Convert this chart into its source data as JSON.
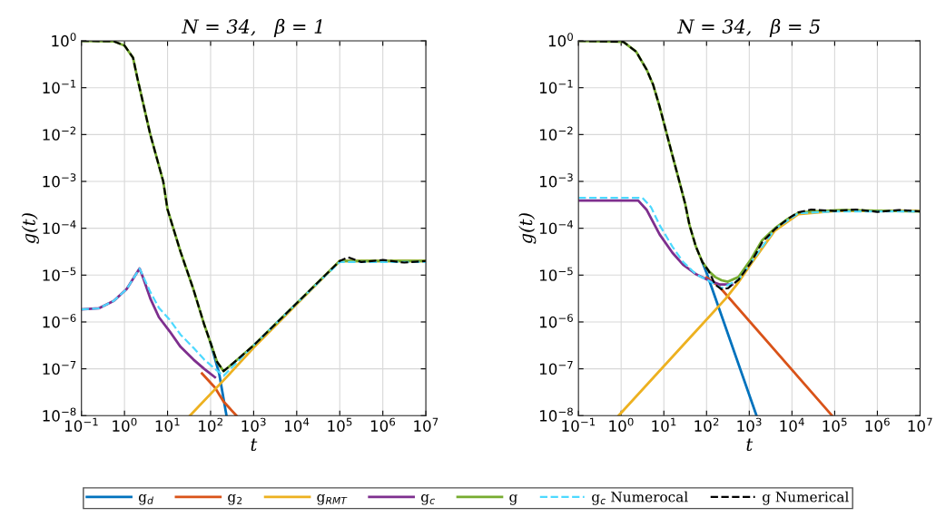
{
  "chart_data": [
    {
      "type": "line",
      "title": "N = 34,   β = 1",
      "xlabel": "t",
      "ylabel": "g(t)",
      "log": "xy",
      "grid": true,
      "legend": "bottom",
      "xlim": [
        0.1,
        10000000
      ],
      "ylim": [
        1e-08,
        1
      ],
      "xticks": [
        {
          "value": 0.1,
          "label": "10$^{−1}$"
        },
        {
          "value": 1,
          "label": "10$^{0}$"
        },
        {
          "value": 10,
          "label": "10$^{1}$"
        },
        {
          "value": 100,
          "label": "10$^{2}$"
        },
        {
          "value": 1000,
          "label": "10$^{3}$"
        },
        {
          "value": 10000,
          "label": "10$^{4}$"
        },
        {
          "value": 100000,
          "label": "10$^{5}$"
        },
        {
          "value": 1000000,
          "label": "10$^{6}$"
        },
        {
          "value": 10000000,
          "label": "10$^{7}$"
        }
      ],
      "yticks": [
        {
          "value": 1e-08,
          "label": "10$^{−8}$"
        },
        {
          "value": 1e-07,
          "label": "10$^{−7}$"
        },
        {
          "value": 1e-06,
          "label": "10$^{−6}$"
        },
        {
          "value": 1e-05,
          "label": "10$^{−5}$"
        },
        {
          "value": 0.0001,
          "label": "10$^{−4}$"
        },
        {
          "value": 0.001,
          "label": "10$^{−3}$"
        },
        {
          "value": 0.01,
          "label": "10$^{−2}$"
        },
        {
          "value": 0.1,
          "label": "10$^{−1}$"
        },
        {
          "value": 1,
          "label": "10$^{0}$"
        }
      ],
      "series": [
        {
          "name": "g$_{d}$",
          "color": "#0072bd",
          "line_style": "solid",
          "x": [
            100,
            158,
            234
          ],
          "values": [
            3.55e-07,
            7.94e-08,
            1e-08
          ]
        },
        {
          "name": "g$_{2}$",
          "color": "#d95319",
          "line_style": "solid",
          "x": [
            63.1,
            126,
            200,
            398
          ],
          "values": [
            7.94e-08,
            3.98e-08,
            2e-08,
            1e-08
          ]
        },
        {
          "name": "g$_{RMT}$",
          "color": "#edb120",
          "line_style": "solid",
          "x": [
            33.1,
            251,
            1000,
            10000,
            100000,
            10000000
          ],
          "values": [
            1e-08,
            7.08e-08,
            2.82e-07,
            2.4e-06,
            2e-05,
            2e-05
          ]
        },
        {
          "name": "g$_{c}$",
          "color": "#7e2f8e",
          "line_style": "solid",
          "x": [
            0.1,
            0.251,
            0.562,
            1.12,
            2.24,
            2.82,
            3.98,
            6.31,
            11.2,
            20,
            39.8,
            70.8,
            126
          ],
          "values": [
            1.86e-06,
            1.95e-06,
            2.82e-06,
            5.01e-06,
            1.38e-05,
            7.94e-06,
            3.16e-06,
            1.26e-06,
            6.31e-07,
            2.95e-07,
            1.58e-07,
            1e-07,
            6.61e-08
          ]
        },
        {
          "name": "g",
          "color": "#77ac30",
          "line_style": "solid",
          "x": [
            0.1,
            0.562,
            1,
            1.58,
            2.0,
            2.82,
            3.98,
            5.62,
            7.94,
            10,
            20,
            39.8,
            70.8,
            100,
            141,
            200,
            316,
            1000,
            3160,
            10000,
            31600,
            100000,
            1000000,
            10000000
          ],
          "values": [
            1,
            0.977,
            0.794,
            0.437,
            0.158,
            0.0398,
            0.01,
            0.00316,
            0.001,
            0.000251,
            3.16e-05,
            5.01e-06,
            8.91e-07,
            3.55e-07,
            1.41e-07,
            8.91e-08,
            1.26e-07,
            3.16e-07,
            8.91e-07,
            2.51e-06,
            7.08e-06,
            2e-05,
            2e-05,
            2e-05
          ]
        },
        {
          "name": "g$_{c}$ Numerocal",
          "color": "#4dd9ff",
          "line_style": "dashed",
          "x": [
            0.1,
            0.251,
            0.562,
            1.12,
            2.24,
            3.98,
            6.31,
            11.2,
            20,
            39.8,
            70.8,
            126,
            200,
            1000,
            10000,
            100000,
            10000000
          ],
          "values": [
            1.86e-06,
            1.95e-06,
            2.82e-06,
            5.01e-06,
            1.38e-05,
            4.37e-06,
            2e-06,
            1.12e-06,
            5.37e-07,
            2.82e-07,
            1.58e-07,
            1e-07,
            7.08e-08,
            3.16e-07,
            2.51e-06,
            1.91e-05,
            1.91e-05
          ]
        },
        {
          "name": "g Numerical",
          "color": "#000000",
          "line_style": "dashed",
          "x": [
            0.1,
            0.562,
            1,
            1.58,
            2.0,
            2.82,
            3.98,
            5.62,
            7.94,
            10,
            20,
            39.8,
            70.8,
            100,
            141,
            200,
            316,
            1000,
            3160,
            10000,
            31600,
            100000,
            158000,
            316000,
            1000000,
            3160000,
            10000000
          ],
          "values": [
            1,
            0.977,
            0.794,
            0.437,
            0.158,
            0.0398,
            0.01,
            0.00316,
            0.001,
            0.000251,
            3.16e-05,
            5.01e-06,
            8.91e-07,
            3.55e-07,
            1.41e-07,
            8.91e-08,
            1.26e-07,
            3.16e-07,
            8.91e-07,
            2.51e-06,
            7.08e-06,
            2e-05,
            2.4e-05,
            1.9e-05,
            2.1e-05,
            1.85e-05,
            2e-05
          ]
        }
      ]
    },
    {
      "type": "line",
      "title": "N = 34,   β = 5",
      "xlabel": "t",
      "ylabel": "g(t)",
      "log": "xy",
      "grid": true,
      "legend": "bottom",
      "xlim": [
        0.1,
        10000000
      ],
      "ylim": [
        1e-08,
        1
      ],
      "xticks": [
        {
          "value": 0.1,
          "label": "10$^{−1}$"
        },
        {
          "value": 1,
          "label": "10$^{0}$"
        },
        {
          "value": 10,
          "label": "10$^{1}$"
        },
        {
          "value": 100,
          "label": "10$^{2}$"
        },
        {
          "value": 1000,
          "label": "10$^{3}$"
        },
        {
          "value": 10000,
          "label": "10$^{4}$"
        },
        {
          "value": 100000,
          "label": "10$^{5}$"
        },
        {
          "value": 1000000,
          "label": "10$^{6}$"
        },
        {
          "value": 10000000,
          "label": "10$^{7}$"
        }
      ],
      "yticks": [
        {
          "value": 1e-08,
          "label": "10$^{−8}$"
        },
        {
          "value": 1e-07,
          "label": "10$^{−7}$"
        },
        {
          "value": 1e-06,
          "label": "10$^{−6}$"
        },
        {
          "value": 1e-05,
          "label": "10$^{−5}$"
        },
        {
          "value": 0.0001,
          "label": "10$^{−4}$"
        },
        {
          "value": 0.001,
          "label": "10$^{−3}$"
        },
        {
          "value": 0.01,
          "label": "10$^{−2}$"
        },
        {
          "value": 0.1,
          "label": "10$^{−1}$"
        },
        {
          "value": 1,
          "label": "10$^{0}$"
        }
      ],
      "series": [
        {
          "name": "g$_{d}$",
          "color": "#0072bd",
          "line_style": "solid",
          "x": [
            79.4,
            100,
            1480
          ],
          "values": [
            1.91e-05,
            1.12e-05,
            1e-08
          ]
        },
        {
          "name": "g$_{2}$",
          "color": "#d95319",
          "line_style": "solid",
          "x": [
            100,
            200,
            87100
          ],
          "values": [
            8.91e-06,
            5.62e-06,
            1e-08
          ]
        },
        {
          "name": "g$_{RMT}$",
          "color": "#edb120",
          "line_style": "solid",
          "x": [
            0.871,
            282,
            562,
            1120,
            3980,
            14100,
            100000,
            10000000
          ],
          "values": [
            1e-08,
            3.16e-06,
            7.08e-06,
            1.78e-05,
            8.91e-05,
            0.0002,
            0.000234,
            0.000234
          ]
        },
        {
          "name": "g$_{c}$",
          "color": "#7e2f8e",
          "line_style": "solid",
          "x": [
            0.1,
            2.51,
            3.98,
            7.94,
            15.8,
            28.2,
            56.2,
            112,
            200,
            398
          ],
          "values": [
            0.000389,
            0.000389,
            0.000245,
            7.41e-05,
            3.02e-05,
            1.66e-05,
            1.05e-05,
            7.76e-06,
            6.31e-06,
            6.31e-06
          ]
        },
        {
          "name": "g",
          "color": "#77ac30",
          "line_style": "solid",
          "x": [
            0.1,
            1.12,
            2.24,
            3.98,
            5.62,
            7.94,
            11.2,
            15.8,
            22.4,
            31.6,
            39.8,
            56.2,
            79.4,
            112,
            158,
            224,
            316,
            562,
            1120,
            2000,
            3980,
            7940,
            14100,
            28200,
            141000,
            10000000
          ],
          "values": [
            1,
            0.955,
            0.589,
            0.24,
            0.115,
            0.0398,
            0.012,
            0.00363,
            0.0011,
            0.000331,
            0.000117,
            4.07e-05,
            1.91e-05,
            1.23e-05,
            9.12e-06,
            7.76e-06,
            7.24e-06,
            9.12e-06,
            2.24e-05,
            5.5e-05,
            0.0001,
            0.000158,
            0.000214,
            0.000229,
            0.000245,
            0.000229
          ]
        },
        {
          "name": "g$_{c}$ Numerocal",
          "color": "#4dd9ff",
          "line_style": "dashed",
          "x": [
            0.1,
            3.16,
            5.01,
            7.94,
            15.8,
            28.2,
            56.2,
            112,
            224,
            562,
            1120,
            3980,
            14100,
            100000,
            10000000
          ],
          "values": [
            0.000447,
            0.000447,
            0.000282,
            0.000117,
            4.07e-05,
            1.91e-05,
            1.05e-05,
            7.59e-06,
            5.25e-06,
            7.94e-06,
            1.91e-05,
            9.55e-05,
            0.000209,
            0.000229,
            0.000229
          ]
        },
        {
          "name": "g Numerical",
          "color": "#000000",
          "line_style": "dashed",
          "x": [
            0.1,
            1.12,
            2.24,
            3.98,
            5.62,
            7.94,
            11.2,
            15.8,
            22.4,
            31.6,
            39.8,
            56.2,
            79.4,
            112,
            158,
            224,
            316,
            562,
            1120,
            2000,
            3980,
            7940,
            14100,
            28200,
            100000,
            316000,
            1000000,
            3160000,
            10000000
          ],
          "values": [
            1,
            0.955,
            0.589,
            0.24,
            0.115,
            0.0398,
            0.012,
            0.00363,
            0.0011,
            0.000331,
            0.000117,
            4.07e-05,
            1.91e-05,
            1.23e-05,
            6.31e-06,
            5.01e-06,
            5.25e-06,
            7.94e-06,
            1.91e-05,
            5.01e-05,
            9.55e-05,
            0.000158,
            0.000219,
            0.000251,
            0.000234,
            0.000251,
            0.000224,
            0.000245,
            0.000229
          ]
        }
      ]
    }
  ]
}
